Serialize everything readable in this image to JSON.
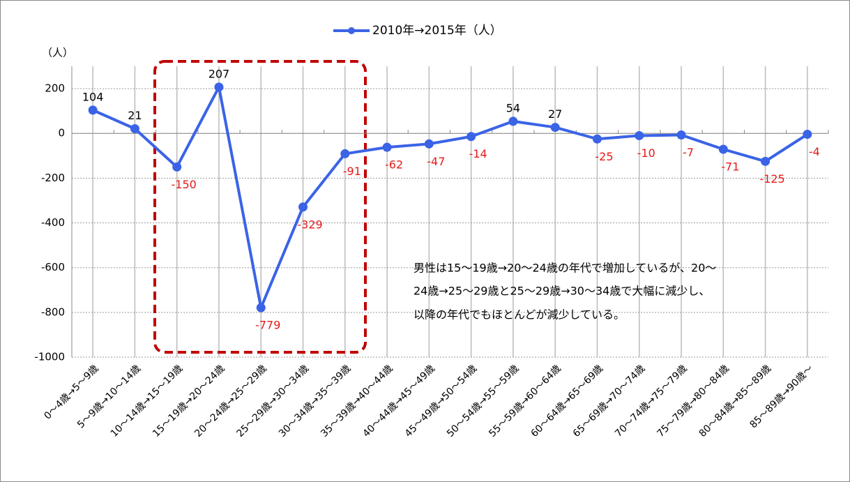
{
  "chart_data": {
    "type": "line",
    "legend": "2010年→2015年（人）",
    "y_axis_label": "（人）",
    "annotation": [
      "男性は15～19歳→20～24歳の年代で増加しているが、20～",
      "24歳→25～29歳と25～29歳→30～34歳で大幅に減少し、",
      "以降の年代でもほとんどが減少している。"
    ],
    "categories": [
      "0～4歳→5～9歳",
      "5～9歳→10～14歳",
      "10～14歳→15～19歳",
      "15～19歳→20～24歳",
      "20～24歳→25～29歳",
      "25～29歳→30～34歳",
      "30～34歳→35～39歳",
      "35～39歳→40～44歳",
      "40～44歳→45～49歳",
      "45～49歳→50～54歳",
      "50～54歳→55～59歳",
      "55～59歳→60～64歳",
      "60～64歳→65～69歳",
      "65～69歳→70～74歳",
      "70～74歳→75～79歳",
      "75～79歳→80～84歳",
      "80～84歳→85～89歳",
      "85～89歳→90歳～"
    ],
    "series": [
      {
        "name": "2010年→2015年（人）",
        "color": "#3a63e6",
        "values": [
          104,
          21,
          -150,
          207,
          -779,
          -329,
          -91,
          -62,
          -47,
          -14,
          54,
          27,
          -25,
          -10,
          -7,
          -71,
          -125,
          -4
        ]
      }
    ],
    "ylim": [
      -1000,
      300
    ],
    "yticks": [
      -1000,
      -800,
      -600,
      -400,
      -200,
      0,
      200
    ],
    "grid": true,
    "label_color": "#000000",
    "negative_label_color": "#e61919"
  }
}
